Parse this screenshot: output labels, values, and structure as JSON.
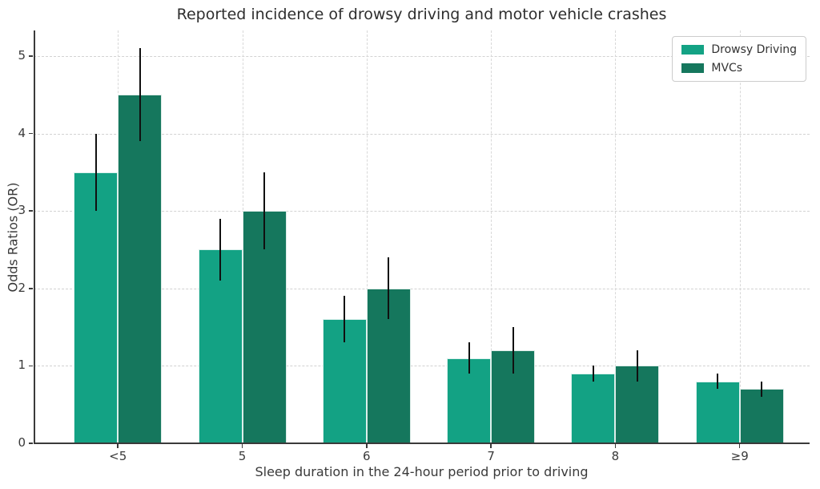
{
  "chart_data": {
    "type": "bar",
    "title": "Reported incidence of drowsy driving and motor vehicle crashes",
    "xlabel": "Sleep duration in the 24-hour period prior to driving",
    "ylabel": "Odds Ratios (OR)",
    "categories": [
      "<5",
      "5",
      "6",
      "7",
      "8",
      "≥9"
    ],
    "series": [
      {
        "name": "Drowsy Driving",
        "color": "#13a284",
        "values": [
          3.5,
          2.5,
          1.6,
          1.1,
          0.9,
          0.8
        ],
        "error_low": [
          3.0,
          2.1,
          1.3,
          0.9,
          0.8,
          0.7
        ],
        "error_high": [
          4.0,
          2.9,
          1.9,
          1.3,
          1.0,
          0.9
        ]
      },
      {
        "name": "MVCs",
        "color": "#15775d",
        "values": [
          4.5,
          3.0,
          2.0,
          1.2,
          1.0,
          0.7
        ],
        "error_low": [
          3.9,
          2.5,
          1.6,
          0.9,
          0.8,
          0.6
        ],
        "error_high": [
          5.1,
          3.5,
          2.4,
          1.5,
          1.2,
          0.8
        ]
      }
    ],
    "yticks": [
      0,
      1,
      2,
      3,
      4,
      5
    ],
    "ylim": [
      0,
      5.33
    ],
    "grid": true,
    "grid_style": "dashed",
    "legend_position": "upper right",
    "error_bar_color": "#101010",
    "axis_color": "#3a3a3a"
  }
}
